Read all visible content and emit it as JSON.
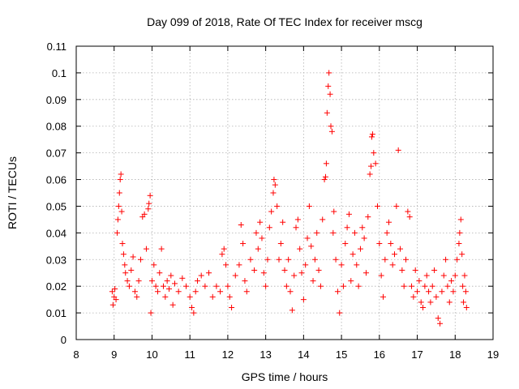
{
  "chart_data": {
    "type": "scatter",
    "title": "Day 099 of 2018, Rate Of TEC Index for receiver mscg",
    "xlabel": "GPS time / hours",
    "ylabel": "ROTI / TECUs",
    "xlim": [
      8,
      19
    ],
    "ylim": [
      0,
      0.11
    ],
    "x_ticks": [
      "8",
      "9",
      "10",
      "11",
      "12",
      "13",
      "14",
      "15",
      "16",
      "17",
      "18",
      "19"
    ],
    "y_ticks": [
      "0",
      "0.01",
      "0.02",
      "0.03",
      "0.04",
      "0.05",
      "0.06",
      "0.07",
      "0.08",
      "0.09",
      "0.1",
      "0.11"
    ],
    "grid": true,
    "marker": "+",
    "color": "#ff0000",
    "series": [
      {
        "name": "ROTI",
        "points": [
          [
            8.95,
            0.018
          ],
          [
            8.97,
            0.013
          ],
          [
            9.0,
            0.016
          ],
          [
            9.02,
            0.019
          ],
          [
            9.05,
            0.015
          ],
          [
            9.08,
            0.04
          ],
          [
            9.1,
            0.045
          ],
          [
            9.12,
            0.05
          ],
          [
            9.14,
            0.055
          ],
          [
            9.16,
            0.06
          ],
          [
            9.18,
            0.062
          ],
          [
            9.2,
            0.048
          ],
          [
            9.22,
            0.036
          ],
          [
            9.25,
            0.032
          ],
          [
            9.28,
            0.028
          ],
          [
            9.3,
            0.025
          ],
          [
            9.35,
            0.022
          ],
          [
            9.4,
            0.02
          ],
          [
            9.45,
            0.026
          ],
          [
            9.5,
            0.031
          ],
          [
            9.55,
            0.018
          ],
          [
            9.6,
            0.016
          ],
          [
            9.65,
            0.022
          ],
          [
            9.7,
            0.03
          ],
          [
            9.75,
            0.046
          ],
          [
            9.8,
            0.047
          ],
          [
            9.85,
            0.034
          ],
          [
            9.9,
            0.049
          ],
          [
            9.92,
            0.051
          ],
          [
            9.95,
            0.054
          ],
          [
            9.97,
            0.01
          ],
          [
            10.0,
            0.022
          ],
          [
            10.05,
            0.028
          ],
          [
            10.1,
            0.02
          ],
          [
            10.15,
            0.018
          ],
          [
            10.2,
            0.025
          ],
          [
            10.25,
            0.034
          ],
          [
            10.3,
            0.02
          ],
          [
            10.35,
            0.016
          ],
          [
            10.4,
            0.022
          ],
          [
            10.45,
            0.019
          ],
          [
            10.5,
            0.024
          ],
          [
            10.55,
            0.013
          ],
          [
            10.6,
            0.021
          ],
          [
            10.7,
            0.018
          ],
          [
            10.8,
            0.023
          ],
          [
            10.9,
            0.02
          ],
          [
            11.0,
            0.016
          ],
          [
            11.05,
            0.012
          ],
          [
            11.1,
            0.01
          ],
          [
            11.15,
            0.018
          ],
          [
            11.2,
            0.022
          ],
          [
            11.3,
            0.024
          ],
          [
            11.4,
            0.02
          ],
          [
            11.5,
            0.025
          ],
          [
            11.6,
            0.016
          ],
          [
            11.7,
            0.02
          ],
          [
            11.8,
            0.018
          ],
          [
            11.85,
            0.032
          ],
          [
            11.9,
            0.034
          ],
          [
            11.95,
            0.028
          ],
          [
            12.0,
            0.02
          ],
          [
            12.05,
            0.016
          ],
          [
            12.1,
            0.012
          ],
          [
            12.2,
            0.024
          ],
          [
            12.3,
            0.028
          ],
          [
            12.35,
            0.043
          ],
          [
            12.4,
            0.036
          ],
          [
            12.45,
            0.022
          ],
          [
            12.5,
            0.018
          ],
          [
            12.6,
            0.03
          ],
          [
            12.7,
            0.026
          ],
          [
            12.75,
            0.04
          ],
          [
            12.8,
            0.034
          ],
          [
            12.85,
            0.044
          ],
          [
            12.9,
            0.038
          ],
          [
            12.95,
            0.025
          ],
          [
            13.0,
            0.02
          ],
          [
            13.05,
            0.03
          ],
          [
            13.1,
            0.042
          ],
          [
            13.15,
            0.048
          ],
          [
            13.2,
            0.055
          ],
          [
            13.22,
            0.06
          ],
          [
            13.25,
            0.058
          ],
          [
            13.3,
            0.05
          ],
          [
            13.35,
            0.03
          ],
          [
            13.4,
            0.036
          ],
          [
            13.45,
            0.044
          ],
          [
            13.5,
            0.026
          ],
          [
            13.55,
            0.02
          ],
          [
            13.6,
            0.03
          ],
          [
            13.65,
            0.018
          ],
          [
            13.7,
            0.011
          ],
          [
            13.75,
            0.024
          ],
          [
            13.8,
            0.042
          ],
          [
            13.85,
            0.045
          ],
          [
            13.9,
            0.034
          ],
          [
            13.95,
            0.025
          ],
          [
            14.0,
            0.015
          ],
          [
            14.05,
            0.028
          ],
          [
            14.1,
            0.038
          ],
          [
            14.15,
            0.05
          ],
          [
            14.2,
            0.035
          ],
          [
            14.25,
            0.022
          ],
          [
            14.3,
            0.03
          ],
          [
            14.35,
            0.04
          ],
          [
            14.4,
            0.026
          ],
          [
            14.45,
            0.02
          ],
          [
            14.5,
            0.045
          ],
          [
            14.55,
            0.06
          ],
          [
            14.58,
            0.061
          ],
          [
            14.6,
            0.066
          ],
          [
            14.62,
            0.085
          ],
          [
            14.65,
            0.095
          ],
          [
            14.67,
            0.1
          ],
          [
            14.7,
            0.092
          ],
          [
            14.72,
            0.08
          ],
          [
            14.75,
            0.078
          ],
          [
            14.78,
            0.04
          ],
          [
            14.8,
            0.048
          ],
          [
            14.85,
            0.03
          ],
          [
            14.9,
            0.018
          ],
          [
            14.95,
            0.01
          ],
          [
            15.0,
            0.028
          ],
          [
            15.05,
            0.02
          ],
          [
            15.1,
            0.036
          ],
          [
            15.15,
            0.042
          ],
          [
            15.2,
            0.047
          ],
          [
            15.25,
            0.022
          ],
          [
            15.3,
            0.032
          ],
          [
            15.35,
            0.04
          ],
          [
            15.4,
            0.028
          ],
          [
            15.45,
            0.02
          ],
          [
            15.5,
            0.034
          ],
          [
            15.55,
            0.042
          ],
          [
            15.6,
            0.038
          ],
          [
            15.65,
            0.025
          ],
          [
            15.7,
            0.046
          ],
          [
            15.75,
            0.062
          ],
          [
            15.78,
            0.065
          ],
          [
            15.8,
            0.076
          ],
          [
            15.82,
            0.077
          ],
          [
            15.85,
            0.07
          ],
          [
            15.9,
            0.066
          ],
          [
            15.95,
            0.05
          ],
          [
            16.0,
            0.036
          ],
          [
            16.05,
            0.024
          ],
          [
            16.1,
            0.016
          ],
          [
            16.15,
            0.03
          ],
          [
            16.2,
            0.04
          ],
          [
            16.25,
            0.044
          ],
          [
            16.3,
            0.036
          ],
          [
            16.35,
            0.028
          ],
          [
            16.4,
            0.032
          ],
          [
            16.45,
            0.05
          ],
          [
            16.5,
            0.071
          ],
          [
            16.55,
            0.034
          ],
          [
            16.6,
            0.026
          ],
          [
            16.65,
            0.02
          ],
          [
            16.7,
            0.03
          ],
          [
            16.75,
            0.048
          ],
          [
            16.8,
            0.046
          ],
          [
            16.85,
            0.02
          ],
          [
            16.9,
            0.016
          ],
          [
            16.95,
            0.026
          ],
          [
            17.0,
            0.018
          ],
          [
            17.05,
            0.022
          ],
          [
            17.1,
            0.014
          ],
          [
            17.15,
            0.012
          ],
          [
            17.2,
            0.02
          ],
          [
            17.25,
            0.024
          ],
          [
            17.3,
            0.018
          ],
          [
            17.35,
            0.014
          ],
          [
            17.4,
            0.02
          ],
          [
            17.45,
            0.026
          ],
          [
            17.5,
            0.016
          ],
          [
            17.55,
            0.008
          ],
          [
            17.6,
            0.006
          ],
          [
            17.65,
            0.018
          ],
          [
            17.7,
            0.024
          ],
          [
            17.75,
            0.03
          ],
          [
            17.8,
            0.02
          ],
          [
            17.85,
            0.014
          ],
          [
            17.9,
            0.022
          ],
          [
            17.95,
            0.018
          ],
          [
            18.0,
            0.024
          ],
          [
            18.05,
            0.03
          ],
          [
            18.1,
            0.036
          ],
          [
            18.12,
            0.04
          ],
          [
            18.15,
            0.045
          ],
          [
            18.18,
            0.032
          ],
          [
            18.2,
            0.02
          ],
          [
            18.22,
            0.014
          ],
          [
            18.25,
            0.024
          ],
          [
            18.28,
            0.018
          ],
          [
            18.3,
            0.012
          ]
        ]
      }
    ]
  }
}
